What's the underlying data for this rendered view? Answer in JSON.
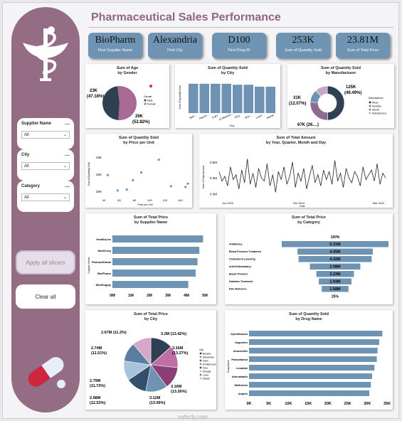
{
  "header": {
    "title": "Pharmaceutical Sales Performance"
  },
  "kpis": [
    {
      "value": "BioPharm",
      "caption": "First Supplier Name"
    },
    {
      "value": "Alexandria",
      "caption": "First City"
    },
    {
      "value": "D100",
      "caption": "First Drug ID"
    },
    {
      "value": "253K",
      "caption": "Sum of Quantity Sold"
    },
    {
      "value": "23.81M",
      "caption": "Sum of Total Price"
    }
  ],
  "slicers": [
    {
      "label": "Supplier Name",
      "value": "All"
    },
    {
      "label": "City",
      "value": "All"
    },
    {
      "label": "Category",
      "value": "All"
    }
  ],
  "buttons": {
    "apply": "Apply all slicers",
    "clear": "Clear all"
  },
  "watermark": "nafezly.com",
  "colors": {
    "accent": "#946d84",
    "bar": "#6f93b3",
    "dark": "#2e4052",
    "pink": "#a96b94"
  },
  "chart_data": [
    {
      "id": "age",
      "type": "pie",
      "title": "Sum of Age",
      "subtitle": "by Gender",
      "slices": [
        {
          "name": "Male",
          "value": "23K",
          "pct": "(47.18%)",
          "v": 47.18
        },
        {
          "name": "Female",
          "value": "26K",
          "pct": "(52.82%)",
          "v": 52.82
        }
      ],
      "legend_title": "Gender",
      "legend": [
        "Male",
        "Female"
      ]
    },
    {
      "id": "qty_city",
      "type": "bar",
      "title": "Sum of Quantity Sold",
      "subtitle": "by City",
      "xlabel": "City",
      "ylabel": "Sum of Quantity Sold",
      "categories": [
        "Beh...",
        "Alexan...",
        "Cairo",
        "Al Mansou...",
        "Giza",
        "Sha...",
        "Luxor",
        "Aswan"
      ],
      "values": [
        30,
        30,
        30,
        30,
        29,
        29,
        27,
        27
      ]
    },
    {
      "id": "qty_mfr",
      "type": "pie",
      "title": "Sum of Quantity Sold",
      "subtitle": "by Manufacturer",
      "slices": [
        {
          "value": "125K",
          "pct": "(49.49%)",
          "v": 49.49
        },
        {
          "value": "67K (26....)",
          "pct": "",
          "v": 26.44
        },
        {
          "value": "31K",
          "pct": "(12.07%)",
          "v": 12.07
        },
        {
          "value": "",
          "pct": "",
          "v": 12.0
        }
      ],
      "legend_title": "Manufacturer",
      "legend": [
        "Pfizer",
        "Novartis",
        "Sanofi",
        "AstraZeneca"
      ]
    },
    {
      "id": "qty_price",
      "type": "scatter",
      "title": "Sum of Quantity Sold",
      "subtitle": "by Price per Unit",
      "xlabel": "Price per Unit",
      "ylabel": "Sum of Quantity Sold",
      "xticks": [
        "40",
        "60",
        "80",
        "100",
        "120",
        "140"
      ],
      "yticks": [
        "30K",
        "32K",
        "34K"
      ],
      "points": [
        [
          45,
          31.9
        ],
        [
          58,
          30.1
        ],
        [
          70,
          30.2
        ],
        [
          78,
          31.3
        ],
        [
          89,
          32.2
        ],
        [
          112,
          33.7
        ],
        [
          128,
          30.6
        ],
        [
          147,
          30.5
        ],
        [
          150,
          30.9
        ]
      ]
    },
    {
      "id": "amount_time",
      "type": "line",
      "title": "Sum of Total Amount",
      "subtitle": "by Year, Quarter, Month and Day",
      "xlabel": "Date",
      "ylabel": "Sum of Total Amount",
      "xticks": [
        "Jun 2023",
        "Feb 2024",
        "Mar 2024"
      ],
      "yticks": [
        "0.3M",
        "0.4M",
        "0.5M"
      ],
      "values": [
        0.44,
        0.38,
        0.41,
        0.35,
        0.47,
        0.39,
        0.42,
        0.33,
        0.45,
        0.37,
        0.52,
        0.36,
        0.43,
        0.34,
        0.46,
        0.4,
        0.38,
        0.49,
        0.35,
        0.42,
        0.31,
        0.44,
        0.39,
        0.47,
        0.36,
        0.41,
        0.5,
        0.34,
        0.43,
        0.38,
        0.46,
        0.33,
        0.41,
        0.48,
        0.37,
        0.42,
        0.35,
        0.45,
        0.39,
        0.44,
        0.36,
        0.51,
        0.38,
        0.43,
        0.34,
        0.46,
        0.4,
        0.37,
        0.44,
        0.41,
        0.35,
        0.47,
        0.39,
        0.42,
        0.45,
        0.38,
        0.49,
        0.36,
        0.43,
        0.4
      ]
    },
    {
      "id": "price_supplier",
      "type": "bar",
      "orientation": "horizontal",
      "title": "Sum of Total Price",
      "subtitle": "by Supplier Name",
      "ylabel": "Supplier Name",
      "categories": [
        "HealthLine",
        "MediCorp",
        "PharmaGlobal",
        "BioPharm",
        "MedSupply"
      ],
      "values": [
        4.9,
        4.7,
        4.6,
        4.5,
        4.1
      ],
      "xticks": [
        "0M",
        "1M",
        "2M",
        "3M",
        "4M",
        "5M"
      ],
      "xmax": 5
    },
    {
      "id": "price_category",
      "type": "funnel",
      "title": "Sum of Total Price",
      "subtitle": "by Category",
      "top_label": "100%",
      "bottom_label": "25%",
      "categories": [
        "Antibiotics",
        "Blood Pressure Treatment",
        "Cholesterol Lowering",
        "Anti-Inflammatory",
        "Blood Thinners",
        "Diabetes Treatment",
        "Pain Relievers"
      ],
      "labels": [
        "6.31M",
        "4.45M",
        "4.32M",
        "2.98M",
        "2.22M",
        "1.93M",
        "1.58M"
      ],
      "values": [
        6.31,
        4.45,
        4.32,
        2.98,
        2.22,
        1.93,
        1.58
      ]
    },
    {
      "id": "price_city",
      "type": "pie",
      "title": "Sum of Total Price",
      "subtitle": "by City",
      "slices": [
        {
          "value": "3.2M",
          "pct": "(13.42%)",
          "v": 13.42
        },
        {
          "value": "3.16M",
          "pct": "(13.27%)",
          "v": 13.27
        },
        {
          "value": "3.16M",
          "pct": "(13.26%)",
          "v": 13.26
        },
        {
          "value": "3.12M",
          "pct": "(13.09%)",
          "v": 13.09
        },
        {
          "value": "2.98M",
          "pct": "(12.53%)",
          "v": 12.53
        },
        {
          "value": "2.79M",
          "pct": "(11.72%)",
          "v": 11.72
        },
        {
          "value": "2.74M",
          "pct": "(11.51%)",
          "v": 11.51
        },
        {
          "value": "2.67M",
          "pct": "(11.2%)",
          "v": 11.2
        }
      ],
      "legend_title": "City",
      "legend": [
        "Beheira",
        "Alexandria",
        "Cairo",
        "Al Mansoura",
        "Giza",
        "Sharqia",
        "Luxor",
        "Aswan"
      ]
    },
    {
      "id": "qty_drug",
      "type": "bar",
      "orientation": "horizontal",
      "title": "Sum of Quantity Sold",
      "subtitle": "by Drug Name",
      "ylabel": "Drug Name",
      "categories": [
        "Ciprofloxacin",
        "Ibuprofen",
        "Amoxicillin",
        "Paracetamol",
        "Losartan",
        "Atorvastatin",
        "Metformin",
        "Aspirin"
      ],
      "values": [
        33.8,
        33.0,
        32.6,
        32.4,
        31.8,
        31.2,
        30.9,
        30.5
      ],
      "xticks": [
        "0K",
        "5K",
        "10K",
        "15K",
        "20K",
        "25K",
        "30K",
        "35K"
      ],
      "xmax": 35
    }
  ]
}
